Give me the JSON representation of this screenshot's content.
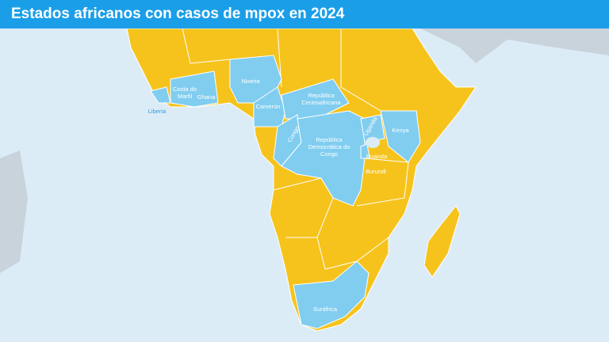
{
  "header": {
    "title": "Estados africanos con casos de mpox en 2024"
  },
  "labels": [
    "Liberia",
    "Costa do Marfil",
    "Ghana",
    "Nixeria",
    "Camerún",
    "República Centroafricana",
    "Congo",
    "República Democrática do Congo",
    "Uganda",
    "Kenya",
    "Ruanda",
    "Burundi",
    "Suráfrica"
  ]
}
